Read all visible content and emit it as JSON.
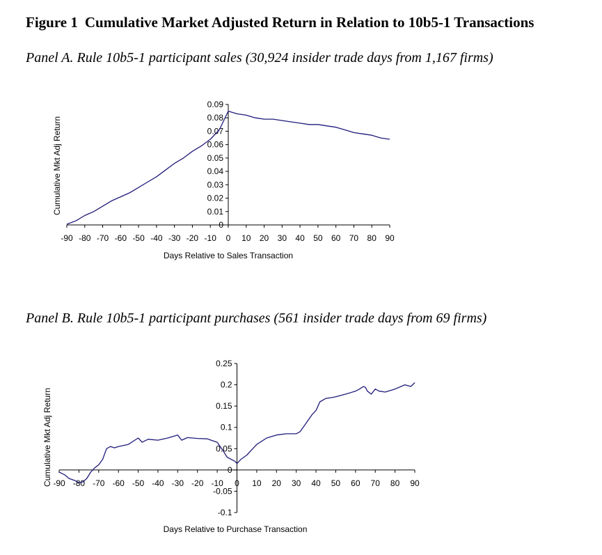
{
  "figure": {
    "number": "Figure 1",
    "title": "Cumulative Market Adjusted Return in Relation to 10b5-1 Transactions"
  },
  "line_color": "#1f1a7a",
  "chart_data": [
    {
      "panel_title": "Panel A.  Rule 10b5-1 participant sales (30,924 insider trade days from 1,167 firms)",
      "type": "line",
      "xlabel": "Days Relative to Sales Transaction",
      "ylabel": "Cumulative Mkt Adj Return",
      "xlim": [
        -90,
        90
      ],
      "ylim": [
        0,
        0.09
      ],
      "xticks": [
        -90,
        -80,
        -70,
        -60,
        -50,
        -40,
        -30,
        -20,
        -10,
        0,
        10,
        20,
        30,
        40,
        50,
        60,
        70,
        80,
        90
      ],
      "xtick_labels": [
        "-90",
        "-80",
        "-70",
        "-60",
        "-50",
        "-40",
        "-30",
        "-20",
        "-10",
        "0",
        "10",
        "20",
        "30",
        "40",
        "50",
        "60",
        "70",
        "80",
        "90"
      ],
      "yticks": [
        0,
        0.01,
        0.02,
        0.03,
        0.04,
        0.05,
        0.06,
        0.07,
        0.08,
        0.09
      ],
      "ytick_labels": [
        "0",
        "0.01",
        "0.02",
        "0.03",
        "0.04",
        "0.05",
        "0.06",
        "0.07",
        "0.08",
        "0.09"
      ],
      "grid": false,
      "x": [
        -90,
        -85,
        -80,
        -75,
        -70,
        -65,
        -60,
        -55,
        -50,
        -45,
        -40,
        -35,
        -30,
        -25,
        -20,
        -15,
        -10,
        -5,
        0,
        5,
        10,
        15,
        20,
        25,
        30,
        35,
        40,
        45,
        50,
        55,
        60,
        65,
        70,
        75,
        80,
        85,
        90
      ],
      "y": [
        0.0005,
        0.003,
        0.007,
        0.01,
        0.014,
        0.018,
        0.021,
        0.024,
        0.028,
        0.032,
        0.036,
        0.041,
        0.046,
        0.05,
        0.055,
        0.059,
        0.064,
        0.071,
        0.085,
        0.083,
        0.082,
        0.08,
        0.079,
        0.079,
        0.078,
        0.077,
        0.076,
        0.075,
        0.075,
        0.074,
        0.073,
        0.071,
        0.069,
        0.068,
        0.067,
        0.065,
        0.064
      ]
    },
    {
      "panel_title": "Panel B.  Rule 10b5-1 participant purchases (561 insider trade days from 69 firms)",
      "type": "line",
      "xlabel": "Days Relative to Purchase Transaction",
      "ylabel": "Cumulative Mkt Adj Return",
      "xlim": [
        -90,
        90
      ],
      "ylim": [
        -0.1,
        0.25
      ],
      "xticks": [
        -90,
        -80,
        -70,
        -60,
        -50,
        -40,
        -30,
        -20,
        -10,
        0,
        10,
        20,
        30,
        40,
        50,
        60,
        70,
        80,
        90
      ],
      "xtick_labels": [
        "-90",
        "-80",
        "-70",
        "-60",
        "-50",
        "-40",
        "-30",
        "-20",
        "-10",
        "0",
        "10",
        "20",
        "30",
        "40",
        "50",
        "60",
        "70",
        "80",
        "90"
      ],
      "yticks": [
        -0.1,
        -0.05,
        0,
        0.05,
        0.1,
        0.15,
        0.2,
        0.25
      ],
      "ytick_labels": [
        "-0.1",
        "-0.05",
        "0",
        "0.05",
        "0.1",
        "0.15",
        "0.2",
        "0.25"
      ],
      "grid": false,
      "x": [
        -90,
        -87,
        -85,
        -82,
        -80,
        -78,
        -76,
        -74,
        -72,
        -70,
        -68,
        -66,
        -64,
        -62,
        -60,
        -55,
        -50,
        -48,
        -45,
        -40,
        -35,
        -30,
        -28,
        -25,
        -20,
        -15,
        -10,
        -7,
        -5,
        -3,
        -1,
        0,
        2,
        5,
        8,
        10,
        15,
        20,
        25,
        30,
        32,
        35,
        38,
        40,
        42,
        45,
        48,
        50,
        55,
        60,
        62,
        64,
        65,
        66,
        68,
        70,
        72,
        75,
        80,
        85,
        88,
        90
      ],
      "y": [
        -0.005,
        -0.012,
        -0.02,
        -0.025,
        -0.03,
        -0.028,
        -0.02,
        -0.005,
        0.005,
        0.012,
        0.025,
        0.05,
        0.055,
        0.052,
        0.055,
        0.06,
        0.075,
        0.065,
        0.072,
        0.07,
        0.075,
        0.082,
        0.07,
        0.076,
        0.074,
        0.073,
        0.065,
        0.045,
        0.03,
        0.025,
        0.02,
        0.015,
        0.025,
        0.035,
        0.05,
        0.06,
        0.075,
        0.082,
        0.085,
        0.085,
        0.09,
        0.11,
        0.13,
        0.14,
        0.16,
        0.168,
        0.17,
        0.172,
        0.178,
        0.185,
        0.19,
        0.196,
        0.194,
        0.185,
        0.178,
        0.19,
        0.185,
        0.183,
        0.19,
        0.2,
        0.196,
        0.205
      ]
    }
  ]
}
